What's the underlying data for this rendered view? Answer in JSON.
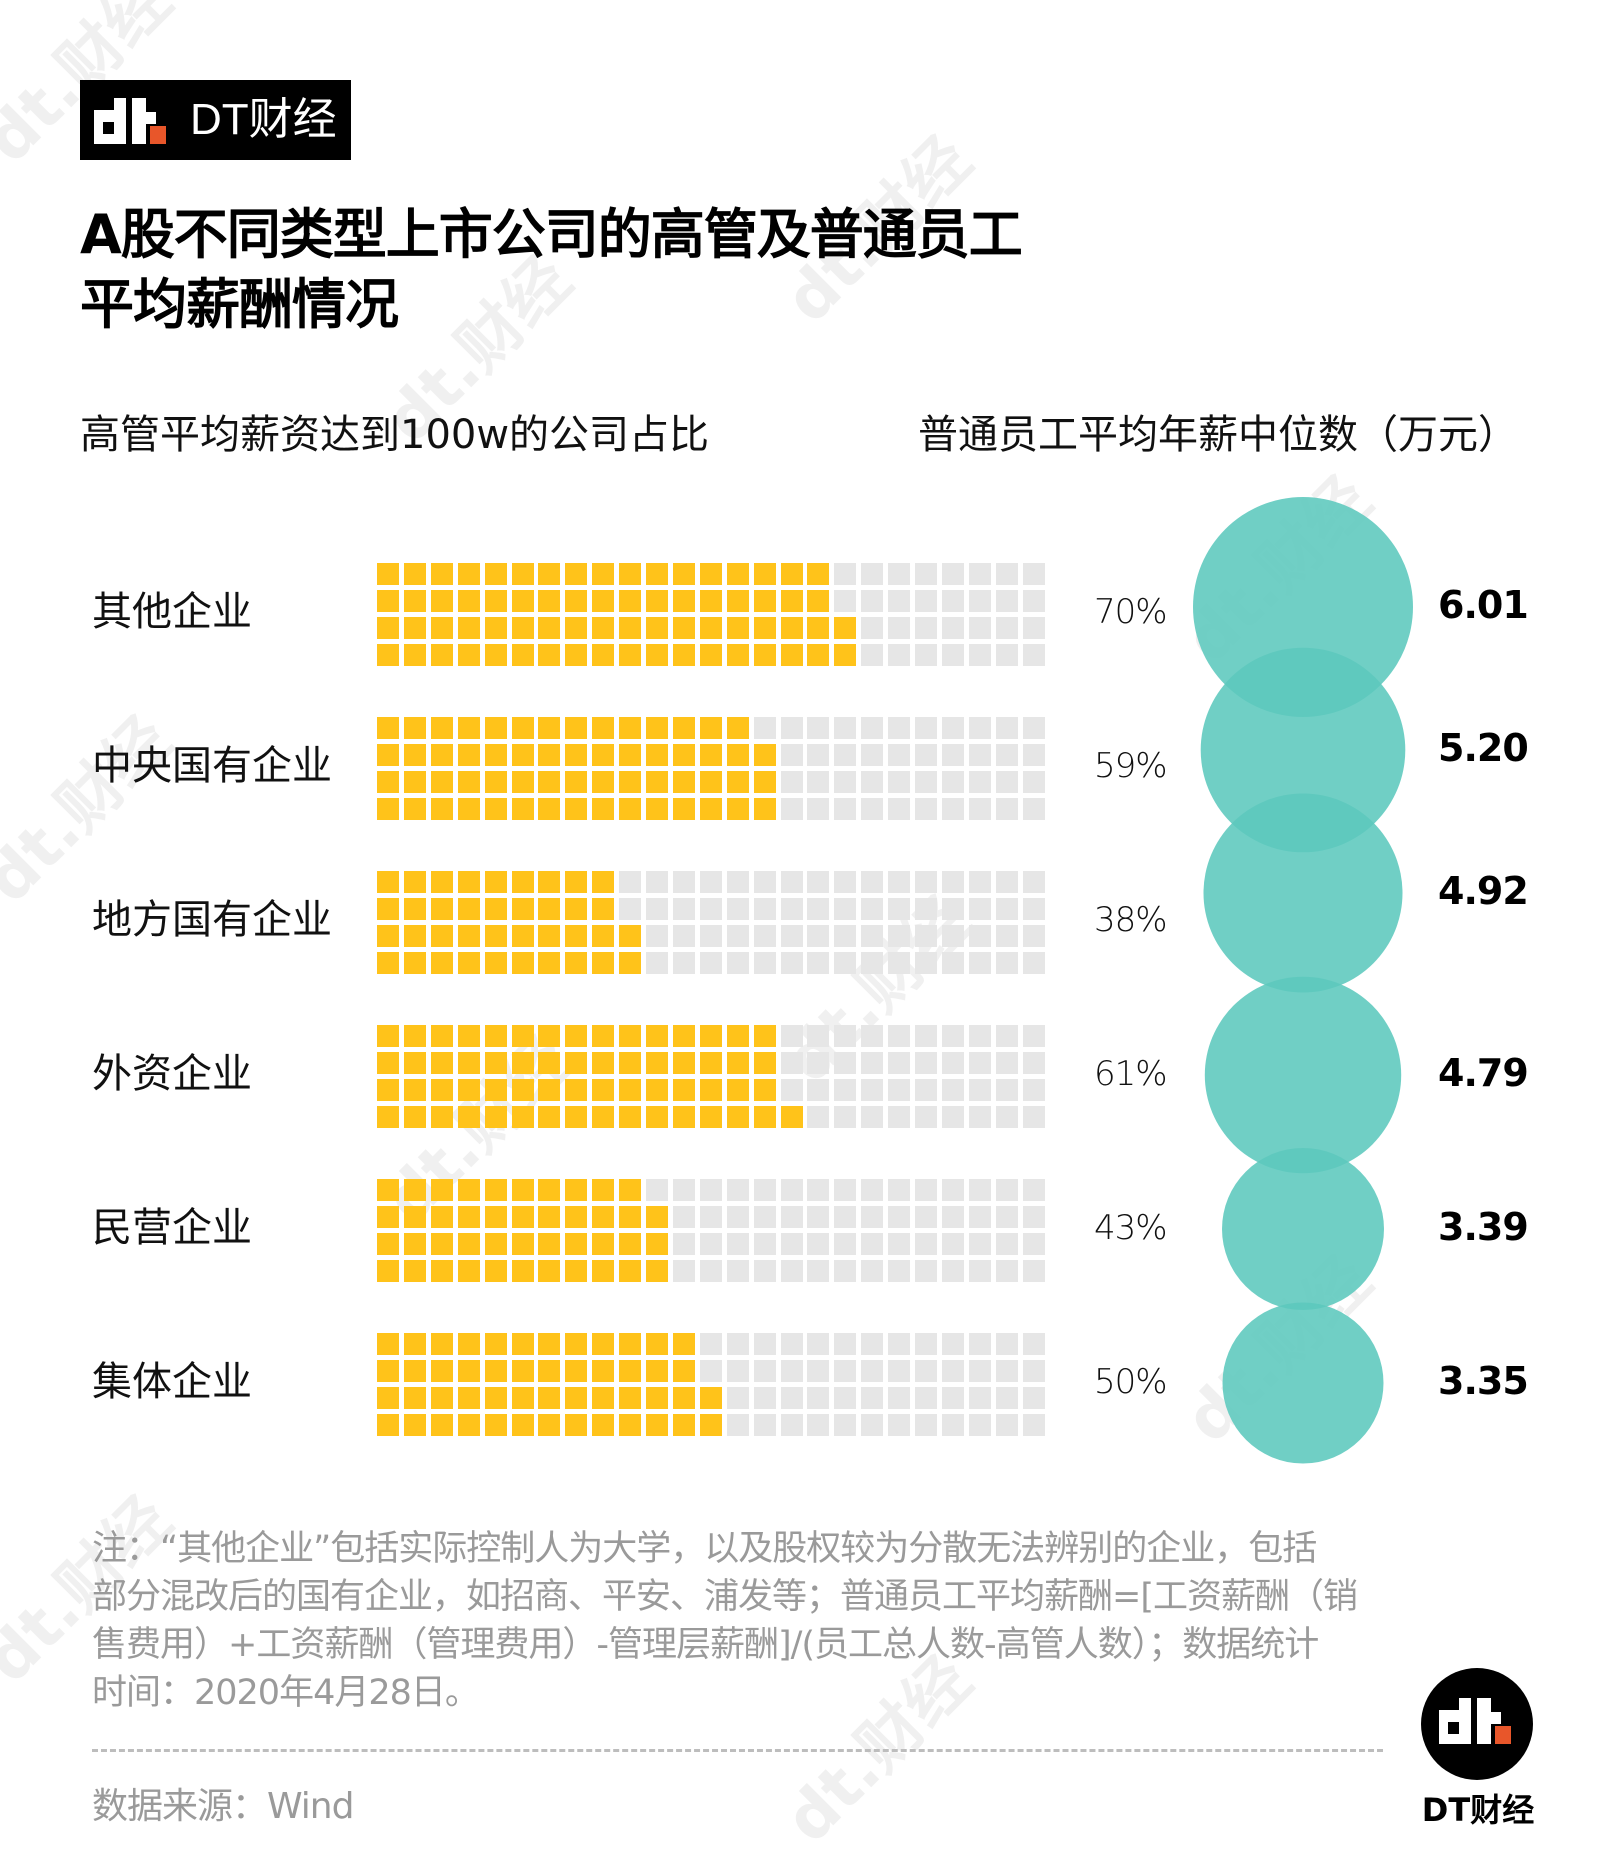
{
  "brand": {
    "logo_text": "DT财经",
    "accent_color": "#e8562a",
    "round_logo_text": "DT财经"
  },
  "title": {
    "line1": "A股不同类型上市公司的高管及普通员工",
    "line2": "平均薪酬情况"
  },
  "subtitles": {
    "left": "高管平均薪资达到100w的公司占比",
    "right": "普通员工平均年薪中位数（万元）"
  },
  "colors": {
    "filled": "#ffc31a",
    "empty": "#e6e6e6",
    "circle": "#5cc8bd",
    "circle_opacity": 0.88
  },
  "rows": [
    {
      "label": "其他企业",
      "pct": 70,
      "pct_label": "70%",
      "value": 6.01,
      "value_label": "6.01"
    },
    {
      "label": "中央国有企业",
      "pct": 59,
      "pct_label": "59%",
      "value": 5.2,
      "value_label": "5.20"
    },
    {
      "label": "地方国有企业",
      "pct": 38,
      "pct_label": "38%",
      "value": 4.92,
      "value_label": "4.92"
    },
    {
      "label": "外资企业",
      "pct": 61,
      "pct_label": "61%",
      "value": 4.79,
      "value_label": "4.79"
    },
    {
      "label": "民营企业",
      "pct": 43,
      "pct_label": "43%",
      "value": 3.39,
      "value_label": "3.39"
    },
    {
      "label": "集体企业",
      "pct": 50,
      "pct_label": "50%",
      "value": 3.35,
      "value_label": "3.35"
    }
  ],
  "footnote": {
    "lines": [
      "注：“其他企业”包括实际控制人为大学，以及股权较为分散无法辨别的企业，包括",
      "部分混改后的国有企业，如招商、平安、浦发等；普通员工平均薪酬=[工资薪酬（销",
      "售费用）+工资薪酬（管理费用）-管理层薪酬]/(员工总人数-高管人数）；数据统计",
      "时间：2020年4月28日。"
    ]
  },
  "source": "数据来源：Wind",
  "chart_data": [
    {
      "type": "waffle",
      "title": "高管平均薪资达到100w的公司占比",
      "categories": [
        "其他企业",
        "中央国有企业",
        "地方国有企业",
        "外资企业",
        "民营企业",
        "集体企业"
      ],
      "values": [
        70,
        59,
        38,
        61,
        43,
        50
      ],
      "unit": "%",
      "grid": {
        "rows": 4,
        "cols": 25,
        "total": 100
      }
    },
    {
      "type": "bubble",
      "title": "普通员工平均年薪中位数（万元）",
      "categories": [
        "其他企业",
        "中央国有企业",
        "地方国有企业",
        "外资企业",
        "民营企业",
        "集体企业"
      ],
      "values": [
        6.01,
        5.2,
        4.92,
        4.79,
        3.39,
        3.35
      ],
      "unit": "万元"
    }
  ]
}
